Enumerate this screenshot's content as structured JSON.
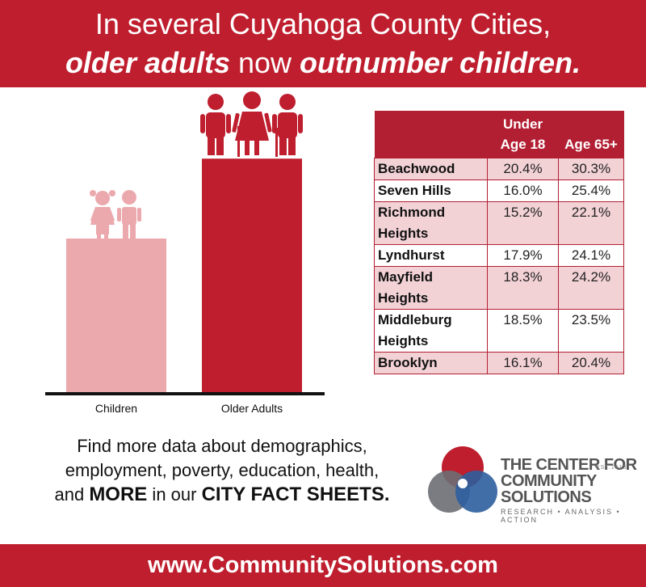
{
  "header": {
    "line1": "In several Cuyahoga County Cities,",
    "line2_part1": "older adults",
    "line2_part2": " now ",
    "line2_part3": "outnumber children",
    "line2_part4": "."
  },
  "chart_data": {
    "type": "bar",
    "categories": [
      "Children",
      "Older Adults"
    ],
    "values": [
      1.0,
      1.52
    ],
    "colors": [
      "#eba9ae",
      "#be1e2d"
    ],
    "title": "",
    "xlabel": "",
    "ylabel": ""
  },
  "table": {
    "headers": [
      "",
      "Under Age 18",
      "Age 65+"
    ],
    "rows": [
      {
        "city": "Beachwood",
        "under18": "20.4%",
        "age65": "30.3%"
      },
      {
        "city": "Seven Hills",
        "under18": "16.0%",
        "age65": "25.4%"
      },
      {
        "city": "Richmond Heights",
        "under18": "15.2%",
        "age65": "22.1%"
      },
      {
        "city": "Lyndhurst",
        "under18": "17.9%",
        "age65": "24.1%"
      },
      {
        "city": "Mayfield Heights",
        "under18": "18.3%",
        "age65": "24.2%"
      },
      {
        "city": "Middleburg Heights",
        "under18": "18.5%",
        "age65": "23.5%"
      },
      {
        "city": "Brooklyn",
        "under18": "16.1%",
        "age65": "20.4%"
      }
    ]
  },
  "cta": {
    "line1": "Find more data about demographics,",
    "line2": "employment, poverty, education, health,",
    "line3_a": "and ",
    "line3_b": "MORE",
    "line3_c": " in our ",
    "line3_d": "CITY FACT SHEETS."
  },
  "org": {
    "name1": "THE CENTER FOR",
    "name2": "COMMUNITY SOLUTIONS",
    "est": "EST.1913",
    "tagline": "RESEARCH • ANALYSIS • ACTION"
  },
  "footer": {
    "url": "www.CommunitySolutions.com"
  },
  "icons": {
    "children": "children-icon",
    "older_adults": "older-adults-icon"
  },
  "colors": {
    "brand_red": "#be1e2d",
    "light_pink": "#eba9ae",
    "table_header": "#b21f33",
    "table_stripe": "#f3d2d6"
  }
}
